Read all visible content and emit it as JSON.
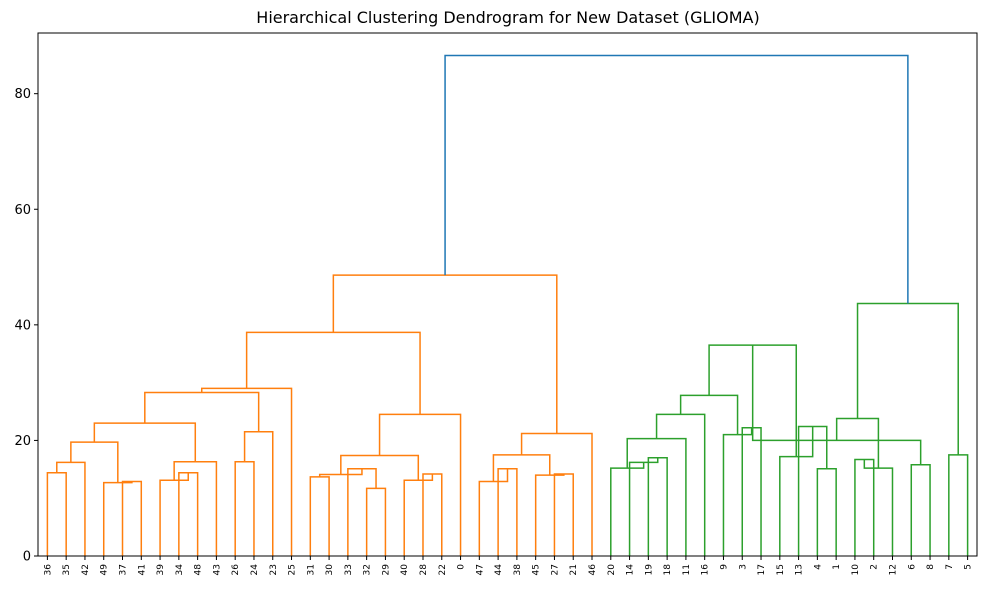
{
  "chart_data": {
    "type": "dendrogram",
    "title": "Hierarchical Clustering Dendrogram for New Dataset (GLIOMA)",
    "xlabel": "",
    "ylabel": "",
    "ylim": [
      0,
      90.5
    ],
    "yticks": [
      0,
      20,
      40,
      60,
      80
    ],
    "leaves": [
      "36",
      "35",
      "42",
      "49",
      "37",
      "41",
      "39",
      "34",
      "48",
      "43",
      "26",
      "24",
      "23",
      "25",
      "31",
      "30",
      "33",
      "32",
      "29",
      "40",
      "28",
      "22",
      "0",
      "47",
      "44",
      "38",
      "45",
      "27",
      "21",
      "46",
      "20",
      "14",
      "19",
      "18",
      "11",
      "16",
      "9",
      "3",
      "17",
      "15",
      "13",
      "4",
      "1",
      "10",
      "2",
      "12",
      "6",
      "8",
      "7",
      "5"
    ],
    "cluster_colors": {
      "orange": "#ff7f0e",
      "green": "#2ca02c",
      "blue": "#1f77b4"
    },
    "merges": [
      {
        "a": "36",
        "b": "35",
        "h": 14.4,
        "c": "orange"
      },
      {
        "a": "n1",
        "b": "42",
        "h": 16.2,
        "c": "orange"
      },
      {
        "a": "37",
        "b": "41",
        "h": 12.9,
        "c": "orange"
      },
      {
        "a": "49",
        "b": "n3",
        "h": 12.7,
        "c": "orange"
      },
      {
        "a": "n2",
        "b": "n4",
        "h": 19.7,
        "c": "orange"
      },
      {
        "a": "34",
        "b": "48",
        "h": 14.4,
        "c": "orange"
      },
      {
        "a": "39",
        "b": "n6",
        "h": 13.1,
        "c": "orange"
      },
      {
        "a": "n7",
        "b": "43",
        "h": 16.3,
        "c": "orange"
      },
      {
        "a": "n5",
        "b": "n8",
        "h": 23.0,
        "c": "orange"
      },
      {
        "a": "26",
        "b": "24",
        "h": 16.3,
        "c": "orange"
      },
      {
        "a": "n10",
        "b": "23",
        "h": 21.5,
        "c": "orange"
      },
      {
        "a": "n9",
        "b": "n11",
        "h": 28.3,
        "c": "orange"
      },
      {
        "a": "n12",
        "b": "25",
        "h": 29.0,
        "c": "orange"
      },
      {
        "a": "31",
        "b": "30",
        "h": 13.7,
        "c": "orange"
      },
      {
        "a": "32",
        "b": "29",
        "h": 11.7,
        "c": "orange"
      },
      {
        "a": "33",
        "b": "n15",
        "h": 15.1,
        "c": "orange"
      },
      {
        "a": "n14",
        "b": "n16",
        "h": 14.1,
        "c": "orange"
      },
      {
        "a": "28",
        "b": "22",
        "h": 14.2,
        "c": "orange"
      },
      {
        "a": "40",
        "b": "n18",
        "h": 13.1,
        "c": "orange"
      },
      {
        "a": "n17",
        "b": "n19",
        "h": 17.4,
        "c": "orange"
      },
      {
        "a": "n20",
        "b": "0",
        "h": 24.5,
        "c": "orange"
      },
      {
        "a": "n13",
        "b": "n21",
        "h": 38.7,
        "c": "orange"
      },
      {
        "a": "44",
        "b": "38",
        "h": 15.1,
        "c": "orange"
      },
      {
        "a": "47",
        "b": "n23",
        "h": 12.9,
        "c": "orange"
      },
      {
        "a": "27",
        "b": "21",
        "h": 14.2,
        "c": "orange"
      },
      {
        "a": "45",
        "b": "n25",
        "h": 14.0,
        "c": "orange"
      },
      {
        "a": "n24",
        "b": "n26",
        "h": 17.5,
        "c": "orange"
      },
      {
        "a": "n27",
        "b": "46",
        "h": 21.2,
        "c": "orange"
      },
      {
        "a": "n22",
        "b": "n28",
        "h": 48.6,
        "c": "orange"
      },
      {
        "a": "19",
        "b": "18",
        "h": 17.0,
        "c": "green"
      },
      {
        "a": "14",
        "b": "n30",
        "h": 16.2,
        "c": "green"
      },
      {
        "a": "20",
        "b": "n31",
        "h": 15.2,
        "c": "green"
      },
      {
        "a": "n32",
        "b": "11",
        "h": 20.3,
        "c": "green"
      },
      {
        "a": "n33",
        "b": "16",
        "h": 24.5,
        "c": "green"
      },
      {
        "a": "3",
        "b": "17",
        "h": 22.2,
        "c": "green"
      },
      {
        "a": "9",
        "b": "n35",
        "h": 21.0,
        "c": "green"
      },
      {
        "a": "n34",
        "b": "n36",
        "h": 27.8,
        "c": "green"
      },
      {
        "a": "4",
        "b": "1",
        "h": 15.1,
        "c": "green"
      },
      {
        "a": "13",
        "b": "n38",
        "h": 22.4,
        "c": "green"
      },
      {
        "a": "15",
        "b": "n39",
        "h": 17.2,
        "c": "green"
      },
      {
        "a": "n37",
        "b": "n40",
        "h": 36.5,
        "c": "green"
      },
      {
        "a": "10",
        "b": "2",
        "h": 16.7,
        "c": "green"
      },
      {
        "a": "6",
        "b": "8",
        "h": 15.8,
        "c": "green"
      },
      {
        "a": "12",
        "b": "n42",
        "h": 15.2,
        "c": "green"
      },
      {
        "a": "n41",
        "b": "n43",
        "h": 20.0,
        "c": "green"
      },
      {
        "a": "7",
        "b": "5",
        "h": 17.5,
        "c": "green"
      },
      {
        "a": "n44",
        "b": "n45",
        "h": 23.8,
        "c": "green"
      },
      {
        "a": "n46",
        "b": "n47",
        "h": 43.7,
        "c": "green"
      },
      {
        "a": "n29",
        "b": "n48",
        "h": 86.6,
        "c": "blue"
      }
    ]
  }
}
